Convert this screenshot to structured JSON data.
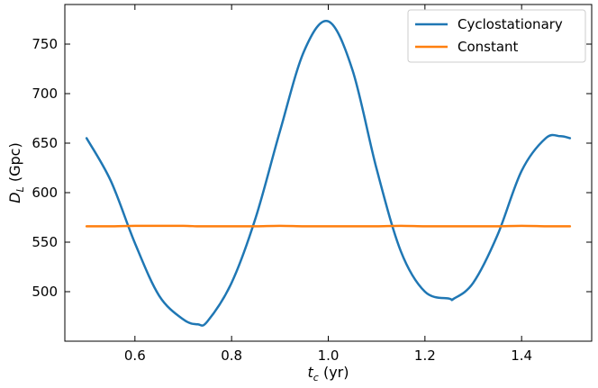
{
  "chart_data": {
    "type": "line",
    "xlabel_main": "t",
    "xlabel_sub": "c",
    "xlabel_unit": " (yr)",
    "ylabel_main": "D",
    "ylabel_sub": "L",
    "ylabel_unit": " (Gpc)",
    "xlim": [
      0.455,
      1.545
    ],
    "ylim": [
      450,
      790
    ],
    "xticks": [
      0.6,
      0.8,
      1.0,
      1.2,
      1.4
    ],
    "xtick_labels": [
      "0.6",
      "0.8",
      "1.0",
      "1.2",
      "1.4"
    ],
    "yticks": [
      500,
      550,
      600,
      650,
      700,
      750
    ],
    "ytick_labels": [
      "500",
      "550",
      "600",
      "650",
      "700",
      "750"
    ],
    "grid": false,
    "legend_position": "top-right",
    "x": [
      0.5,
      0.55,
      0.6,
      0.65,
      0.7,
      0.73,
      0.75,
      0.8,
      0.85,
      0.9,
      0.95,
      1.0,
      1.05,
      1.1,
      1.15,
      1.2,
      1.25,
      1.26,
      1.3,
      1.35,
      1.4,
      1.45,
      1.48,
      1.5
    ],
    "series": [
      {
        "name": "Cyclostationary",
        "color": "#1f77b4",
        "values": [
          655,
          612,
          549,
          496,
          472,
          467,
          470,
          509,
          575,
          662,
          743,
          773,
          724,
          624,
          541,
          500,
          493,
          493,
          509,
          557,
          622,
          655,
          657,
          655
        ]
      },
      {
        "name": "Constant",
        "color": "#ff7f0e",
        "values": [
          566,
          566,
          566.5,
          566.5,
          566.5,
          566,
          566,
          566,
          566,
          566.5,
          566,
          566,
          566,
          566,
          566.5,
          566,
          566,
          566,
          566,
          566,
          566.5,
          566,
          566,
          566
        ]
      }
    ]
  }
}
